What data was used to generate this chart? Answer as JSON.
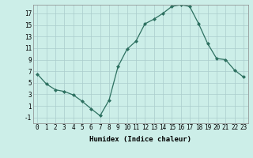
{
  "x": [
    0,
    1,
    2,
    3,
    4,
    5,
    6,
    7,
    8,
    9,
    10,
    11,
    12,
    13,
    14,
    15,
    16,
    17,
    18,
    19,
    20,
    21,
    22,
    23
  ],
  "y": [
    6.5,
    4.8,
    3.8,
    3.5,
    2.9,
    1.8,
    0.5,
    -0.7,
    2.0,
    7.8,
    10.8,
    12.2,
    15.2,
    16.0,
    17.0,
    18.2,
    18.5,
    18.2,
    15.2,
    11.8,
    9.2,
    9.0,
    7.2,
    6.0
  ],
  "line_color": "#2d7060",
  "marker": "D",
  "marker_size": 2,
  "bg_color": "#cceee8",
  "grid_color": "#aacccc",
  "xlabel": "Humidex (Indice chaleur)",
  "xlim": [
    -0.5,
    23.5
  ],
  "ylim": [
    -2.0,
    18.5
  ],
  "yticks": [
    -1,
    1,
    3,
    5,
    7,
    9,
    11,
    13,
    15,
    17
  ],
  "xticks": [
    0,
    1,
    2,
    3,
    4,
    5,
    6,
    7,
    8,
    9,
    10,
    11,
    12,
    13,
    14,
    15,
    16,
    17,
    18,
    19,
    20,
    21,
    22,
    23
  ],
  "label_fontsize": 6.5,
  "tick_fontsize": 5.5
}
